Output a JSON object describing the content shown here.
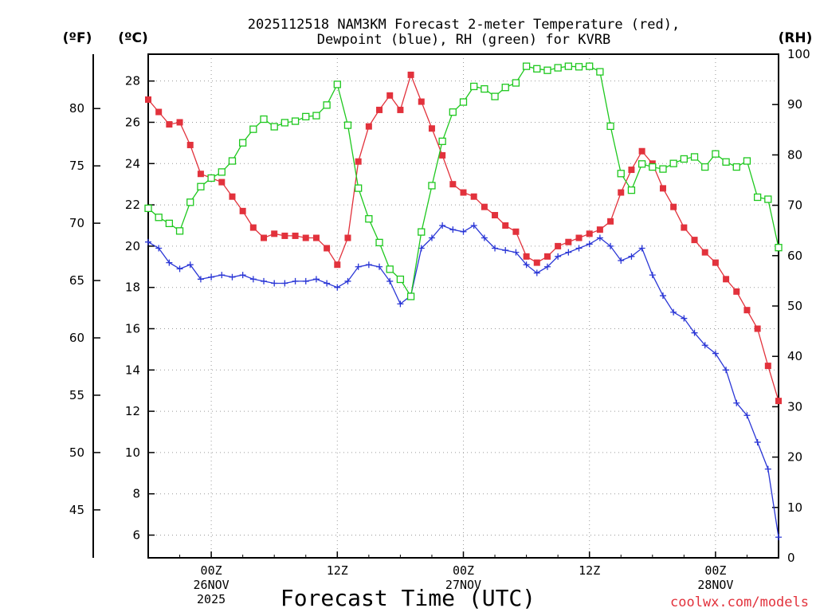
{
  "chart_data": {
    "type": "line",
    "title_lines": [
      "2025112518 NAM3KM Forecast 2-meter Temperature (red),",
      "Dewpoint (blue), RH (green) for KVRB"
    ],
    "xlabel": "Forecast Time (UTC)",
    "credit": "coolwx.com/models",
    "left_axis_f": {
      "unit": "(ºF)",
      "ticks": [
        45,
        50,
        55,
        60,
        65,
        70,
        75,
        80
      ]
    },
    "left_axis_c": {
      "unit": "(ºC)",
      "ylim": [
        4.9,
        29.3
      ],
      "ticks": [
        6,
        8,
        10,
        12,
        14,
        16,
        18,
        20,
        22,
        24,
        26,
        28
      ]
    },
    "right_axis_rh": {
      "unit": "(RH)",
      "ylim": [
        0,
        100
      ],
      "ticks": [
        0,
        10,
        20,
        30,
        40,
        50,
        60,
        70,
        80,
        90,
        100
      ]
    },
    "x_axis": {
      "range_hours": [
        0,
        60
      ],
      "ticks": [
        {
          "hour": 6,
          "lines": [
            "00Z",
            "26NOV",
            "2025"
          ]
        },
        {
          "hour": 18,
          "lines": [
            "12Z"
          ]
        },
        {
          "hour": 30,
          "lines": [
            "00Z",
            "27NOV"
          ]
        },
        {
          "hour": 42,
          "lines": [
            "12Z"
          ]
        },
        {
          "hour": 54,
          "lines": [
            "00Z",
            "28NOV"
          ]
        }
      ]
    },
    "x_hours": [
      0,
      1,
      2,
      3,
      4,
      5,
      6,
      7,
      8,
      9,
      10,
      11,
      12,
      13,
      14,
      15,
      16,
      17,
      18,
      19,
      20,
      21,
      22,
      23,
      24,
      25,
      26,
      27,
      28,
      29,
      30,
      31,
      32,
      33,
      34,
      35,
      36,
      37,
      38,
      39,
      40,
      41,
      42,
      43,
      44,
      45,
      46,
      47,
      48,
      49,
      50,
      51,
      52,
      53,
      54,
      55,
      56,
      57,
      58,
      59,
      60
    ],
    "series": [
      {
        "name": "Temperature",
        "axis": "celsius",
        "color": "#e2323c",
        "marker": "filled-square",
        "values": [
          27.1,
          26.5,
          25.9,
          26.0,
          24.9,
          23.5,
          23.3,
          23.1,
          22.4,
          21.7,
          20.9,
          20.4,
          20.6,
          20.5,
          20.5,
          20.4,
          20.4,
          19.9,
          19.1,
          20.4,
          24.1,
          25.8,
          26.6,
          27.3,
          26.6,
          28.3,
          27.0,
          25.7,
          24.4,
          23.0,
          22.6,
          22.4,
          21.9,
          21.5,
          21.0,
          20.7,
          19.5,
          19.2,
          19.5,
          20.0,
          20.2,
          20.4,
          20.6,
          20.8,
          21.2,
          22.6,
          23.7,
          24.6,
          24.0,
          22.8,
          21.9,
          20.9,
          20.3,
          19.7,
          19.2,
          18.4,
          17.8,
          16.9,
          16.0,
          14.2,
          12.5
        ]
      },
      {
        "name": "Dewpoint",
        "axis": "celsius",
        "color": "#2a36d6",
        "marker": "plus",
        "values": [
          20.2,
          19.9,
          19.2,
          18.9,
          19.1,
          18.4,
          18.5,
          18.6,
          18.5,
          18.6,
          18.4,
          18.3,
          18.2,
          18.2,
          18.3,
          18.3,
          18.4,
          18.2,
          18.0,
          18.3,
          19.0,
          19.1,
          19.0,
          18.3,
          17.2,
          17.6,
          19.9,
          20.4,
          21.0,
          20.8,
          20.7,
          21.0,
          20.4,
          19.9,
          19.8,
          19.7,
          19.1,
          18.7,
          19.0,
          19.5,
          19.7,
          19.9,
          20.1,
          20.4,
          20.0,
          19.3,
          19.5,
          19.9,
          18.6,
          17.6,
          16.8,
          16.5,
          15.8,
          15.2,
          14.8,
          14.0,
          12.4,
          11.8,
          10.5,
          9.2,
          5.9
        ]
      },
      {
        "name": "RH",
        "axis": "rh",
        "color": "#1ec81e",
        "marker": "open-square",
        "values": [
          69.4,
          67.6,
          66.4,
          64.9,
          70.6,
          73.7,
          75.4,
          76.6,
          78.8,
          82.4,
          85.1,
          87.1,
          85.6,
          86.4,
          86.7,
          87.6,
          87.8,
          89.9,
          94.0,
          85.9,
          73.4,
          67.3,
          62.6,
          57.3,
          55.3,
          51.9,
          64.7,
          73.9,
          82.7,
          88.5,
          90.5,
          93.6,
          93.1,
          91.6,
          93.4,
          94.3,
          97.6,
          97.1,
          96.8,
          97.3,
          97.6,
          97.5,
          97.6,
          96.5,
          85.7,
          76.3,
          73.0,
          78.2,
          77.6,
          77.2,
          78.3,
          79.2,
          79.6,
          77.6,
          80.2,
          78.6,
          77.6,
          78.8,
          71.6,
          71.2,
          61.6
        ]
      }
    ]
  }
}
